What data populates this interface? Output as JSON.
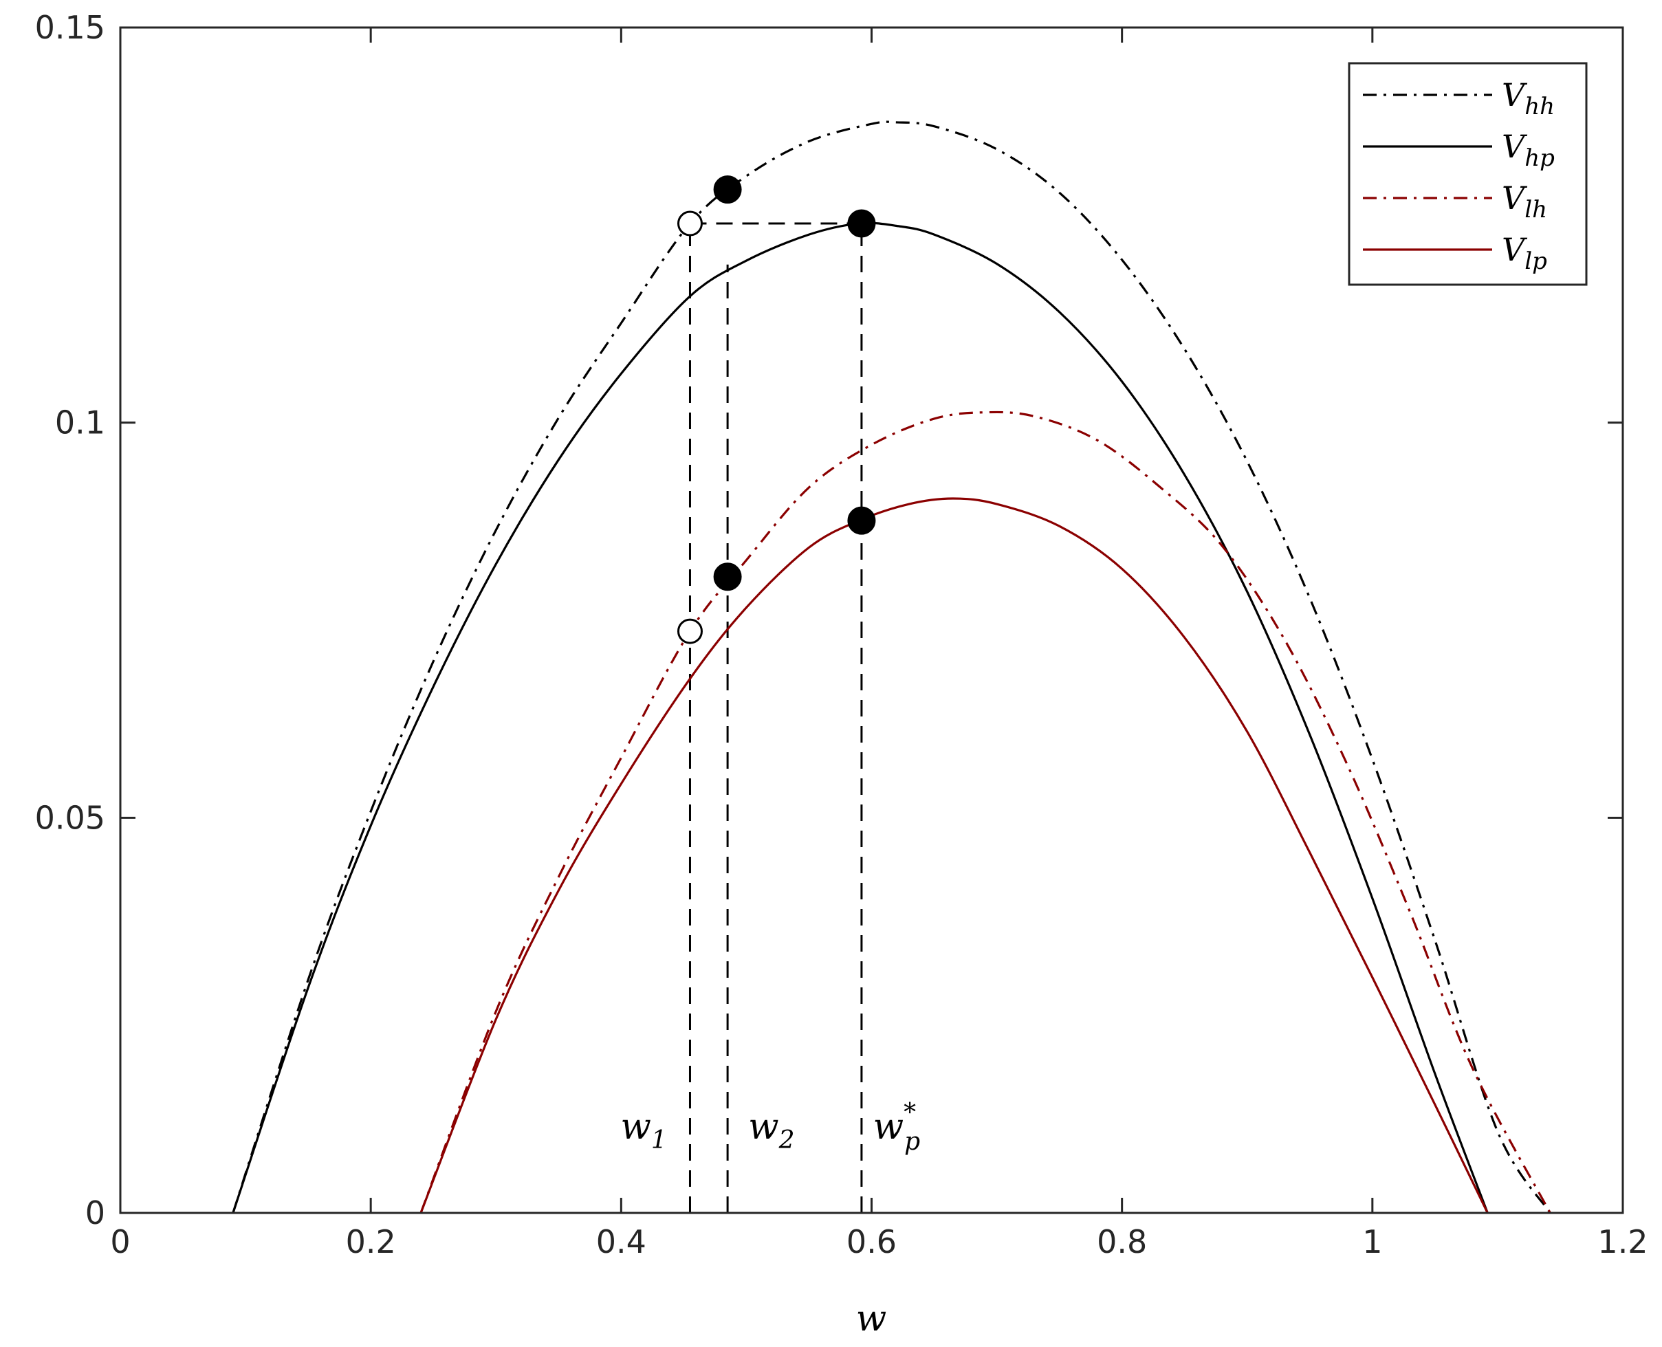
{
  "chart_data": {
    "type": "line",
    "xlabel": "w",
    "ylabel": "",
    "xlim": [
      0,
      1.2
    ],
    "ylim": [
      0,
      0.15
    ],
    "xticks": [
      0,
      0.2,
      0.4,
      0.6,
      0.8,
      1,
      1.2
    ],
    "xtick_labels": [
      "0",
      "0.2",
      "0.4",
      "0.6",
      "0.8",
      "1",
      "1.2"
    ],
    "yticks": [
      0,
      0.05,
      0.1,
      0.15
    ],
    "ytick_labels": [
      "0",
      "0.05",
      "0.1",
      "0.15"
    ],
    "grid": false,
    "legend_position": "top-right",
    "series": [
      {
        "name": "V",
        "subscript": "hh",
        "color": "#000000",
        "style": "dash-dot",
        "x": [
          0.09,
          0.15,
          0.2,
          0.25,
          0.3,
          0.35,
          0.4,
          0.455,
          0.5,
          0.55,
          0.6,
          0.62,
          0.65,
          0.7,
          0.75,
          0.8,
          0.85,
          0.9,
          0.95,
          1.0,
          1.05,
          1.1,
          1.142
        ],
        "y": [
          0.0,
          0.0295,
          0.0508,
          0.0698,
          0.0864,
          0.1006,
          0.1126,
          0.1252,
          0.1312,
          0.1356,
          0.1378,
          0.138,
          0.1375,
          0.1346,
          0.1291,
          0.1206,
          0.1093,
          0.0951,
          0.0778,
          0.0574,
          0.0345,
          0.0103,
          0.0
        ]
      },
      {
        "name": "V",
        "subscript": "hp",
        "color": "#000000",
        "style": "solid",
        "x": [
          0.09,
          0.15,
          0.2,
          0.25,
          0.3,
          0.35,
          0.4,
          0.455,
          0.5,
          0.55,
          0.59,
          0.62,
          0.65,
          0.7,
          0.75,
          0.8,
          0.85,
          0.9,
          0.95,
          1.0,
          1.05,
          1.092
        ],
        "y": [
          0.0,
          0.0285,
          0.049,
          0.0666,
          0.0821,
          0.0953,
          0.1062,
          0.116,
          0.1205,
          0.1238,
          0.1252,
          0.1249,
          0.1238,
          0.1201,
          0.114,
          0.1052,
          0.0934,
          0.0786,
          0.0605,
          0.0398,
          0.0176,
          0.0
        ]
      },
      {
        "name": "V",
        "subscript": "lh",
        "color": "#8b0000",
        "style": "dash-dot",
        "x": [
          0.24,
          0.3,
          0.35,
          0.4,
          0.455,
          0.5,
          0.55,
          0.6,
          0.65,
          0.69,
          0.73,
          0.78,
          0.83,
          0.88,
          0.93,
          0.98,
          1.03,
          1.08,
          1.142
        ],
        "y": [
          0.0,
          0.0255,
          0.0425,
          0.0576,
          0.0736,
          0.0826,
          0.0918,
          0.0972,
          0.1005,
          0.1013,
          0.1008,
          0.0978,
          0.0919,
          0.0844,
          0.0725,
          0.0567,
          0.0381,
          0.0183,
          0.0
        ]
      },
      {
        "name": "V",
        "subscript": "lp",
        "color": "#8b0000",
        "style": "solid",
        "x": [
          0.24,
          0.3,
          0.35,
          0.4,
          0.455,
          0.5,
          0.55,
          0.59,
          0.63,
          0.665,
          0.7,
          0.75,
          0.8,
          0.85,
          0.9,
          0.95,
          1.0,
          1.05,
          1.092
        ],
        "y": [
          0.0,
          0.0245,
          0.0408,
          0.0543,
          0.0676,
          0.0766,
          0.0842,
          0.0876,
          0.0897,
          0.0904,
          0.0897,
          0.0869,
          0.0815,
          0.0728,
          0.0609,
          0.0456,
          0.0298,
          0.0137,
          0.0
        ]
      }
    ],
    "markers": [
      {
        "x": 0.455,
        "y": 0.1252,
        "filled": false
      },
      {
        "x": 0.485,
        "y": 0.1295,
        "filled": true
      },
      {
        "x": 0.592,
        "y": 0.1252,
        "filled": true
      },
      {
        "x": 0.455,
        "y": 0.0736,
        "filled": false
      },
      {
        "x": 0.485,
        "y": 0.0805,
        "filled": true
      },
      {
        "x": 0.592,
        "y": 0.0876,
        "filled": true
      }
    ],
    "guide_lines": [
      {
        "x": [
          0.455,
          0.455
        ],
        "y": [
          0,
          0.1252
        ]
      },
      {
        "x": [
          0.485,
          0.485
        ],
        "y": [
          0,
          0.12
        ]
      },
      {
        "x": [
          0.592,
          0.592
        ],
        "y": [
          0,
          0.1252
        ]
      },
      {
        "x": [
          0.455,
          0.592
        ],
        "y": [
          0.1252,
          0.1252
        ]
      }
    ],
    "annotations": [
      {
        "text": "w",
        "subscript": "1",
        "superscript": "",
        "x": 0.418,
        "y": 0.0094
      },
      {
        "text": "w",
        "subscript": "2",
        "superscript": "",
        "x": 0.52,
        "y": 0.0094
      },
      {
        "text": "w",
        "subscript": "p",
        "superscript": "*",
        "x": 0.62,
        "y": 0.0094
      }
    ]
  }
}
